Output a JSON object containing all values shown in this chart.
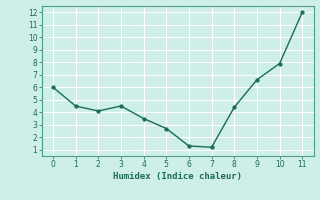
{
  "x": [
    0,
    1,
    2,
    3,
    4,
    5,
    6,
    7,
    8,
    9,
    10,
    11
  ],
  "y": [
    6.0,
    4.5,
    4.1,
    4.5,
    3.5,
    2.7,
    1.3,
    1.2,
    4.4,
    6.6,
    7.9,
    12.0
  ],
  "xlabel": "Humidex (Indice chaleur)",
  "xlim": [
    -0.5,
    11.5
  ],
  "ylim": [
    0.5,
    12.5
  ],
  "xticks": [
    0,
    1,
    2,
    3,
    4,
    5,
    6,
    7,
    8,
    9,
    10,
    11
  ],
  "yticks": [
    1,
    2,
    3,
    4,
    5,
    6,
    7,
    8,
    9,
    10,
    11,
    12
  ],
  "line_color": "#1a6b5a",
  "marker_color": "#1a6b5a",
  "bg_color": "#ceeee8",
  "grid_color": "#ffffff",
  "axes_bg": "#ceeee8",
  "spine_color": "#4a9e8a",
  "tick_color": "#1a6b5a"
}
